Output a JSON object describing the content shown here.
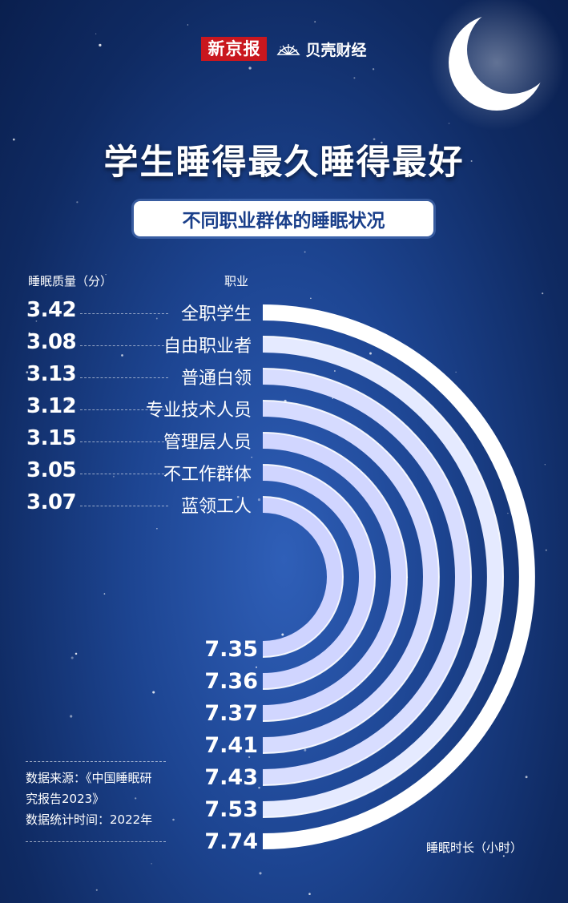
{
  "brand": {
    "name_a": "新京报",
    "name_b": "贝壳财经",
    "colors": {
      "red": "#c9171e"
    }
  },
  "title": "学生睡得最久睡得最好",
  "subtitle": "不同职业群体的睡眠状况",
  "headers": {
    "score": "睡眠质量（分）",
    "occupation": "职业",
    "duration": "睡眠时长（小时）"
  },
  "source": {
    "line1": "数据来源：《中国睡眠研",
    "line2": "究报告2023》",
    "line3": "数据统计时间：2022年"
  },
  "chart_data": {
    "type": "bar",
    "categories": [
      "全职学生",
      "自由职业者",
      "普通白领",
      "专业技术人员",
      "管理层人员",
      "不工作群体",
      "蓝领工人"
    ],
    "series": [
      {
        "name": "睡眠质量（分）",
        "values": [
          3.42,
          3.08,
          3.13,
          3.12,
          3.15,
          3.05,
          3.07
        ]
      },
      {
        "name": "睡眠时长（小时）",
        "values": [
          7.74,
          7.53,
          7.43,
          7.41,
          7.37,
          7.36,
          7.35
        ]
      }
    ],
    "title": "不同职业群体的睡眠状况",
    "bar_shape": "concentric half-rings",
    "colors": {
      "outer": "#ffffff",
      "inner": "#b7cbed",
      "background": "#1d4592"
    }
  }
}
